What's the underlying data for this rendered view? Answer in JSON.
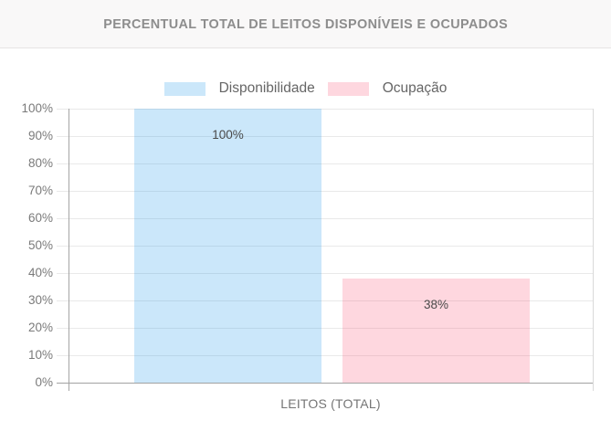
{
  "header": {
    "title": "PERCENTUAL TOTAL DE LEITOS DISPONÍVEIS E OCUPADOS"
  },
  "colors": {
    "bar_blue": "rgba(54,162,235,0.26)",
    "bar_pink": "rgba(252,99,132,0.26)",
    "header_bg": "#f9f8f8",
    "gridline": "#e9e9e9",
    "axis_line": "#a2a2a2",
    "title_text": "#8d8d8d",
    "axis_text": "#7a7a7a"
  },
  "chart_data": {
    "type": "bar",
    "title": "PERCENTUAL TOTAL DE LEITOS DISPONÍVEIS E OCUPADOS",
    "categories": [
      "LEITOS (TOTAL)"
    ],
    "series": [
      {
        "name": "Disponibilidade",
        "values": [
          100
        ],
        "label": "100%",
        "color": "rgba(54,162,235,0.26)"
      },
      {
        "name": "Ocupação",
        "values": [
          38
        ],
        "label": "38%",
        "color": "rgba(252,99,132,0.26)"
      }
    ],
    "xlabel": "LEITOS (TOTAL)",
    "ylabel": "",
    "ylim": [
      0,
      100
    ],
    "ytick_step": 10,
    "y_ticks": [
      "100%",
      "90%",
      "80%",
      "70%",
      "60%",
      "50%",
      "40%",
      "30%",
      "20%",
      "10%",
      "0%"
    ],
    "value_suffix": "%",
    "grid": true,
    "legend_position": "top"
  }
}
